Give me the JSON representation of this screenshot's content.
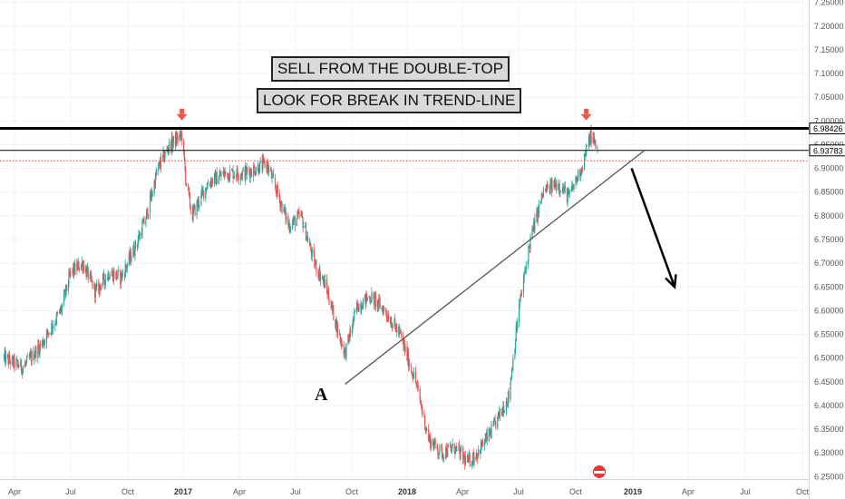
{
  "annotations": {
    "line1": "SELL FROM THE DOUBLE-TOP",
    "line2": "LOOK FOR BREAK IN TREND-LINE",
    "point_label": "A"
  },
  "colors": {
    "up": "#26a69a",
    "down": "#ef5350",
    "arrow_marker": "#e8584f",
    "grid": "#f0f3fa",
    "axis_text": "#555555"
  },
  "chart_data": {
    "type": "candlestick",
    "y_axis": {
      "range": [
        6.245,
        7.255
      ],
      "ticks": [
        "7.25000",
        "7.20000",
        "7.15000",
        "7.10000",
        "7.05000",
        "7.00000",
        "6.95000",
        "6.90000",
        "6.85000",
        "6.80000",
        "6.75000",
        "6.70000",
        "6.65000",
        "6.60000",
        "6.55000",
        "6.50000",
        "6.45000",
        "6.40000",
        "6.35000",
        "6.30000",
        "6.25000"
      ]
    },
    "x_axis": {
      "ticks": [
        {
          "label": "Apr",
          "bold": false
        },
        {
          "label": "Jul",
          "bold": false
        },
        {
          "label": "Oct",
          "bold": false
        },
        {
          "label": "2017",
          "bold": true
        },
        {
          "label": "Apr",
          "bold": false
        },
        {
          "label": "Jul",
          "bold": false
        },
        {
          "label": "Oct",
          "bold": false
        },
        {
          "label": "2018",
          "bold": true
        },
        {
          "label": "Apr",
          "bold": false
        },
        {
          "label": "Jul",
          "bold": false
        },
        {
          "label": "Oct",
          "bold": false
        },
        {
          "label": "2019",
          "bold": true
        },
        {
          "label": "Apr",
          "bold": false
        },
        {
          "label": "Jul",
          "bold": false
        },
        {
          "label": "Oct",
          "bold": false
        }
      ]
    },
    "price_path": [
      [
        "2016-03-15",
        6.5
      ],
      [
        "2016-04-15",
        6.48
      ],
      [
        "2016-05-15",
        6.53
      ],
      [
        "2016-06-15",
        6.6
      ],
      [
        "2016-07-01",
        6.68
      ],
      [
        "2016-07-20",
        6.7
      ],
      [
        "2016-08-10",
        6.64
      ],
      [
        "2016-09-01",
        6.68
      ],
      [
        "2016-09-20",
        6.67
      ],
      [
        "2016-10-15",
        6.74
      ],
      [
        "2016-11-01",
        6.8
      ],
      [
        "2016-11-20",
        6.9
      ],
      [
        "2016-12-10",
        6.95
      ],
      [
        "2016-12-30",
        6.97
      ],
      [
        "2017-01-05",
        6.88
      ],
      [
        "2017-01-15",
        6.8
      ],
      [
        "2017-02-10",
        6.87
      ],
      [
        "2017-03-10",
        6.89
      ],
      [
        "2017-04-10",
        6.89
      ],
      [
        "2017-05-15",
        6.91
      ],
      [
        "2017-06-01",
        6.85
      ],
      [
        "2017-06-20",
        6.78
      ],
      [
        "2017-07-10",
        6.8
      ],
      [
        "2017-08-01",
        6.7
      ],
      [
        "2017-08-20",
        6.65
      ],
      [
        "2017-09-10",
        6.55
      ],
      [
        "2017-09-20",
        6.51
      ],
      [
        "2017-10-10",
        6.61
      ],
      [
        "2017-11-01",
        6.63
      ],
      [
        "2017-11-25",
        6.6
      ],
      [
        "2017-12-20",
        6.55
      ],
      [
        "2018-01-15",
        6.45
      ],
      [
        "2018-02-05",
        6.33
      ],
      [
        "2018-02-25",
        6.3
      ],
      [
        "2018-03-20",
        6.31
      ],
      [
        "2018-04-10",
        6.28
      ],
      [
        "2018-04-25",
        6.3
      ],
      [
        "2018-05-20",
        6.35
      ],
      [
        "2018-06-15",
        6.42
      ],
      [
        "2018-07-01",
        6.6
      ],
      [
        "2018-07-20",
        6.75
      ],
      [
        "2018-08-10",
        6.85
      ],
      [
        "2018-09-01",
        6.87
      ],
      [
        "2018-09-20",
        6.84
      ],
      [
        "2018-10-10",
        6.9
      ],
      [
        "2018-10-25",
        6.97
      ],
      [
        "2018-11-05",
        6.94
      ]
    ],
    "hlines": [
      {
        "value": 6.98426,
        "label": "6.98426",
        "style": "bold-black"
      },
      {
        "value": 6.93783,
        "label": "6.93783",
        "style": "thin-black"
      },
      {
        "value": 6.916,
        "label": "",
        "style": "dotted-red"
      }
    ],
    "trendline": {
      "from": [
        "2017-09-20",
        6.445
      ],
      "to": [
        "2019-01-20",
        6.938
      ]
    },
    "down_arrow": {
      "from": [
        "2018-12-30",
        6.9
      ],
      "to": [
        "2019-03-10",
        6.65
      ]
    },
    "top_markers": [
      [
        "2016-12-30",
        6.98
      ],
      [
        "2018-10-18",
        6.98
      ]
    ]
  }
}
